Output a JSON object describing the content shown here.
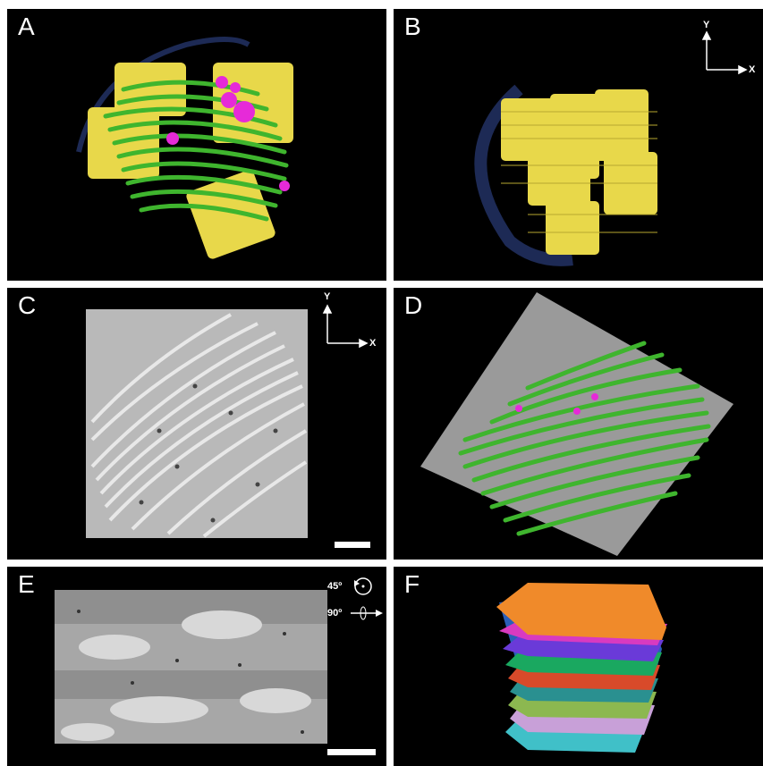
{
  "figure": {
    "panels": [
      {
        "letter": "A"
      },
      {
        "letter": "B",
        "axes": {
          "y": "Y",
          "x": "X"
        }
      },
      {
        "letter": "C",
        "axes": {
          "y": "Y",
          "x": "X"
        }
      },
      {
        "letter": "D"
      },
      {
        "letter": "E",
        "rotations": [
          "45º",
          "90º"
        ]
      },
      {
        "letter": "F"
      }
    ],
    "colors": {
      "thylakoid_green": "#3fb52e",
      "grana_yellow": "#e8d84a",
      "envelope_navy": "#1d2a55",
      "plastoglobule_magenta": "#e62ad8",
      "orange_layer": "#f08a2a"
    }
  }
}
